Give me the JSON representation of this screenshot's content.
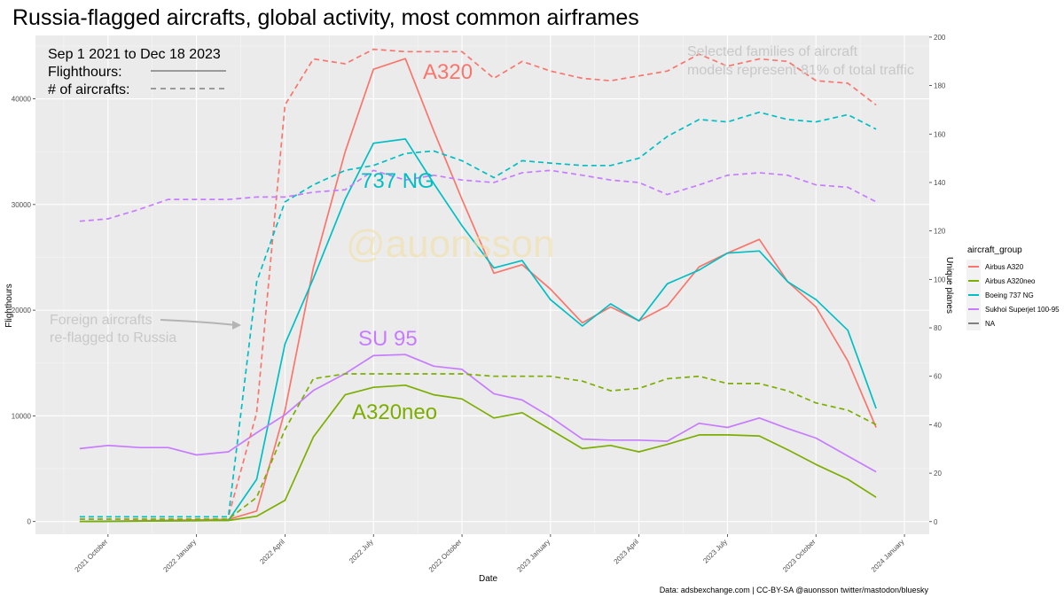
{
  "title": "Russia-flagged aircrafts, global activity, most common airframes",
  "inset": {
    "period": "Sep 1 2021 to Dec 18 2023",
    "solid_label": "Flighthours:",
    "dashed_label": "# of aircrafts:"
  },
  "note": {
    "line1": "Selected families of aircraft",
    "line2": "models represent 81% of total traffic"
  },
  "annotation": {
    "line1": "Foreign aircrafts",
    "line2": "re-flagged to Russia"
  },
  "watermark": "@auonsson",
  "credit": "Data: adsbexchange.com | CC-BY-SA @auonsson twitter/mastodon/bluesky",
  "series_labels": {
    "a320": "A320",
    "b737": "737 NG",
    "su95": "SU 95",
    "a320neo": "A320neo"
  },
  "legend": {
    "title": "aircraft_group",
    "items": [
      "Airbus A320",
      "Airbus A320neo",
      "Boeing 737 NG",
      "Sukhoi Superjet 100-95",
      "NA"
    ]
  },
  "chart_data": {
    "type": "line",
    "title": "Russia-flagged aircrafts, global activity, most common airframes",
    "xlabel": "Date",
    "ylabel": "Flighthours",
    "y2label": "Unique planes",
    "ylim": [
      -1200,
      46000
    ],
    "y2lim": [
      -5.2,
      200.7
    ],
    "y_ticks": [
      0,
      10000,
      20000,
      30000,
      40000
    ],
    "y2_ticks": [
      0,
      20,
      40,
      60,
      80,
      100,
      120,
      140,
      160,
      180,
      200
    ],
    "x_tick_labels": [
      "2021 October",
      "2022 January",
      "2022 April",
      "2022 July",
      "2022 October",
      "2023 January",
      "2023 April",
      "2023 July",
      "2023 October",
      "2024 January"
    ],
    "x_ticks": [
      2021.75,
      2022.0,
      2022.25,
      2022.5,
      2022.75,
      2023.0,
      2023.25,
      2023.5,
      2023.75,
      2024.0
    ],
    "legend_position": "right",
    "colors": {
      "Airbus A320": "#f8766d",
      "Airbus A320neo": "#7cae00",
      "Boeing 737 NG": "#00bfc4",
      "Sukhoi Superjet 100-95": "#c77cff",
      "NA": "#7f7f7f"
    },
    "series": [
      {
        "name": "Airbus A320",
        "metric": "flighthours",
        "style": "solid",
        "x": [
          2021.67,
          2022.09,
          2022.17,
          2022.25,
          2022.33,
          2022.42,
          2022.5,
          2022.59,
          2022.67,
          2022.75,
          2022.84,
          2022.92,
          2023.0,
          2023.09,
          2023.17,
          2023.25,
          2023.33,
          2023.42,
          2023.5,
          2023.59,
          2023.67,
          2023.75,
          2023.84,
          2023.92
        ],
        "values": [
          0,
          200,
          1000,
          10500,
          24000,
          35000,
          42800,
          43800,
          37000,
          30500,
          23500,
          24300,
          22000,
          18800,
          20300,
          19000,
          20400,
          24100,
          25400,
          26700,
          22700,
          20300,
          15200,
          8900
        ]
      },
      {
        "name": "Boeing 737 NG",
        "metric": "flighthours",
        "style": "solid",
        "x": [
          2021.67,
          2022.09,
          2022.17,
          2022.25,
          2022.33,
          2022.42,
          2022.5,
          2022.59,
          2022.67,
          2022.75,
          2022.84,
          2022.92,
          2023.0,
          2023.09,
          2023.17,
          2023.25,
          2023.33,
          2023.42,
          2023.5,
          2023.59,
          2023.67,
          2023.75,
          2023.84,
          2023.92
        ],
        "values": [
          0,
          100,
          4000,
          16800,
          23000,
          30500,
          35800,
          36200,
          32000,
          28000,
          24000,
          24700,
          21000,
          18500,
          20600,
          19000,
          22500,
          23800,
          25400,
          25600,
          22700,
          21000,
          18100,
          10700
        ]
      },
      {
        "name": "Sukhoi Superjet 100-95",
        "metric": "flighthours",
        "style": "solid",
        "x": [
          2021.67,
          2021.75,
          2021.84,
          2021.92,
          2022.0,
          2022.09,
          2022.17,
          2022.25,
          2022.33,
          2022.42,
          2022.5,
          2022.59,
          2022.67,
          2022.75,
          2022.84,
          2022.92,
          2023.0,
          2023.09,
          2023.17,
          2023.25,
          2023.33,
          2023.42,
          2023.5,
          2023.59,
          2023.67,
          2023.75,
          2023.84,
          2023.92
        ],
        "values": [
          6900,
          7200,
          7000,
          7000,
          6300,
          6600,
          8400,
          10100,
          12400,
          14000,
          15700,
          15800,
          14700,
          14400,
          12100,
          11500,
          9900,
          7800,
          7700,
          7700,
          7600,
          9300,
          8900,
          9800,
          8800,
          7900,
          6200,
          4700
        ]
      },
      {
        "name": "Airbus A320neo",
        "metric": "flighthours",
        "style": "solid",
        "x": [
          2021.67,
          2022.09,
          2022.17,
          2022.25,
          2022.33,
          2022.42,
          2022.5,
          2022.59,
          2022.67,
          2022.75,
          2022.84,
          2022.92,
          2023.0,
          2023.09,
          2023.17,
          2023.25,
          2023.33,
          2023.42,
          2023.5,
          2023.59,
          2023.67,
          2023.75,
          2023.84,
          2023.92
        ],
        "values": [
          0,
          100,
          500,
          2000,
          8000,
          12000,
          12700,
          12900,
          12000,
          11600,
          9800,
          10300,
          8700,
          6900,
          7200,
          6600,
          7300,
          8200,
          8200,
          8100,
          6800,
          5400,
          4000,
          2300
        ]
      },
      {
        "name": "Airbus A320",
        "metric": "unique_planes",
        "style": "dashed",
        "x": [
          2021.67,
          2022.09,
          2022.17,
          2022.25,
          2022.33,
          2022.42,
          2022.5,
          2022.59,
          2022.67,
          2022.75,
          2022.84,
          2022.92,
          2023.0,
          2023.09,
          2023.17,
          2023.25,
          2023.33,
          2023.42,
          2023.5,
          2023.59,
          2023.67,
          2023.75,
          2023.84,
          2023.92
        ],
        "values": [
          2,
          2,
          45,
          172,
          191,
          189,
          195,
          194,
          194,
          194,
          183,
          190,
          186,
          183,
          182,
          184,
          186,
          193,
          188,
          191,
          190,
          182,
          181,
          172
        ]
      },
      {
        "name": "Boeing 737 NG",
        "metric": "unique_planes",
        "style": "dashed",
        "x": [
          2021.67,
          2022.09,
          2022.17,
          2022.25,
          2022.33,
          2022.42,
          2022.5,
          2022.59,
          2022.67,
          2022.75,
          2022.84,
          2022.92,
          2023.0,
          2023.09,
          2023.17,
          2023.25,
          2023.33,
          2023.42,
          2023.5,
          2023.59,
          2023.67,
          2023.75,
          2023.84,
          2023.92
        ],
        "values": [
          2,
          2,
          99,
          132,
          139,
          145,
          147,
          152,
          153,
          149,
          142,
          149,
          148,
          147,
          147,
          150,
          159,
          166,
          165,
          169,
          166,
          165,
          168,
          162
        ]
      },
      {
        "name": "Sukhoi Superjet 100-95",
        "metric": "unique_planes",
        "style": "dashed",
        "x": [
          2021.67,
          2021.75,
          2021.84,
          2021.92,
          2022.0,
          2022.09,
          2022.17,
          2022.25,
          2022.33,
          2022.42,
          2022.5,
          2022.59,
          2022.67,
          2022.75,
          2022.84,
          2022.92,
          2023.0,
          2023.09,
          2023.17,
          2023.25,
          2023.33,
          2023.42,
          2023.5,
          2023.59,
          2023.67,
          2023.75,
          2023.84,
          2023.92
        ],
        "values": [
          124,
          125,
          129,
          133,
          133,
          133,
          134,
          134,
          136,
          137,
          145,
          141,
          143,
          141,
          140,
          144,
          145,
          143,
          141,
          140,
          135,
          139,
          143,
          144,
          143,
          139,
          138,
          132
        ]
      },
      {
        "name": "Airbus A320neo",
        "metric": "unique_planes",
        "style": "dashed",
        "x": [
          2021.67,
          2022.09,
          2022.17,
          2022.25,
          2022.33,
          2022.42,
          2022.5,
          2022.59,
          2022.67,
          2022.75,
          2022.84,
          2022.92,
          2023.0,
          2023.09,
          2023.17,
          2023.25,
          2023.33,
          2023.42,
          2023.5,
          2023.59,
          2023.67,
          2023.75,
          2023.84,
          2023.92
        ],
        "values": [
          1,
          1,
          10,
          38,
          59,
          61,
          61,
          61,
          61,
          61,
          60,
          60,
          60,
          58,
          54,
          55,
          59,
          60,
          57,
          57,
          54,
          49,
          46,
          40
        ]
      }
    ]
  }
}
